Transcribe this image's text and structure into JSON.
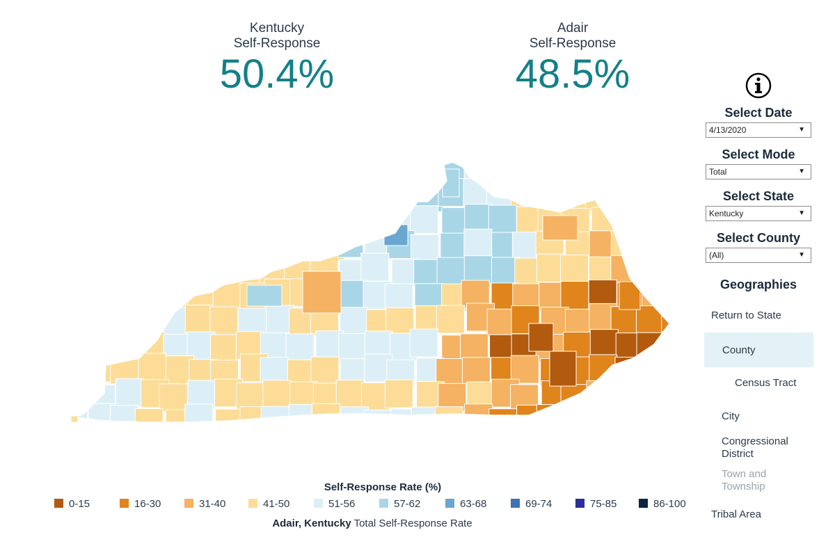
{
  "kpis": {
    "state": {
      "title_line1": "Kentucky",
      "title_line2": "Self-Response",
      "value": "50.4%"
    },
    "county": {
      "title_line1": "Adair",
      "title_line2": "Self-Response",
      "value": "48.5%"
    }
  },
  "controls": {
    "date": {
      "label": "Select Date",
      "value": "4/13/2020"
    },
    "mode": {
      "label": "Select Mode",
      "value": "Total"
    },
    "state": {
      "label": "Select State",
      "value": "Kentucky"
    },
    "county": {
      "label": "Select County",
      "value": "(All)"
    }
  },
  "geographies": {
    "title": "Geographies",
    "items": [
      "Return to State",
      "County",
      "Census Tract",
      "City",
      "Congressional District",
      "Town and Township",
      "Tribal Area"
    ],
    "selected": "County"
  },
  "legend": {
    "title": "Self-Response Rate (%)",
    "bins": [
      {
        "label": "0-15",
        "color": "#b25a0e"
      },
      {
        "label": "16-30",
        "color": "#e0841c"
      },
      {
        "label": "31-40",
        "color": "#f4b262"
      },
      {
        "label": "41-50",
        "color": "#fcdc97"
      },
      {
        "label": "51-56",
        "color": "#ddeff6"
      },
      {
        "label": "57-62",
        "color": "#a9d6e6"
      },
      {
        "label": "63-68",
        "color": "#6aa6cf"
      },
      {
        "label": "69-74",
        "color": "#3e73b8"
      },
      {
        "label": "75-85",
        "color": "#2b2f99"
      },
      {
        "label": "86-100",
        "color": "#0f2443"
      }
    ]
  },
  "footer": {
    "place": "Adair, Kentucky",
    "text": " Total Self-Response Rate"
  },
  "colors": {
    "accent": "#138089"
  }
}
